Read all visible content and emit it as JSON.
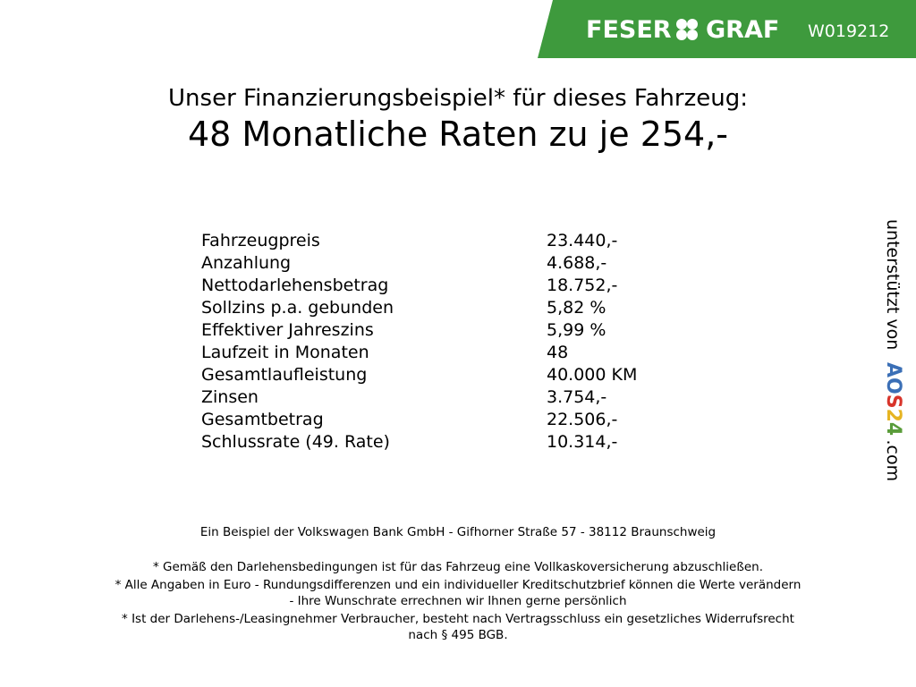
{
  "header": {
    "brand_left": "FESER",
    "brand_right": "GRAF",
    "code": "W019212"
  },
  "title": "Unser Finanzierungsbeispiel* für dieses Fahrzeug:",
  "subtitle": "48 Monatliche Raten zu je 254,-",
  "table": {
    "rows": [
      [
        "Fahrzeugpreis",
        "23.440,-"
      ],
      [
        "Anzahlung",
        "4.688,-"
      ],
      [
        "Nettodarlehensbetrag",
        "18.752,-"
      ],
      [
        "Sollzins p.a. gebunden",
        "5,82 %"
      ],
      [
        "Effektiver Jahreszins",
        "5,99 %"
      ],
      [
        "Laufzeit in Monaten",
        "48"
      ],
      [
        "Gesamtlaufleistung",
        "40.000 KM"
      ],
      [
        "Zinsen",
        "3.754,-"
      ],
      [
        "Gesamtbetrag",
        "22.506,-"
      ],
      [
        "Schlussrate (49. Rate)",
        "10.314,-"
      ]
    ]
  },
  "lender": "Ein Beispiel der Volkswagen Bank GmbH - Gifhorner Straße 57 - 38112 Braunschweig",
  "notes": [
    [
      "* Gemäß den Darlehensbedingungen ist für das Fahrzeug eine Vollkaskoversicherung abzuschließen."
    ],
    [
      "* Alle Angaben in Euro - Rundungsdifferenzen und ein individueller Kreditschutzbrief können die Werte verändern",
      "- Ihre Wunschrate errechnen wir Ihnen gerne persönlich"
    ],
    [
      "* Ist der Darlehens-/Leasingnehmer Verbraucher, besteht nach Vertragsschluss ein gesetzliches Widerrufsrecht",
      "nach § 495 BGB."
    ]
  ],
  "sidebar": {
    "prefix": "unterstützt von",
    "brand": [
      "A",
      "O",
      "S",
      "2",
      "4"
    ],
    "suffix": ".com"
  }
}
